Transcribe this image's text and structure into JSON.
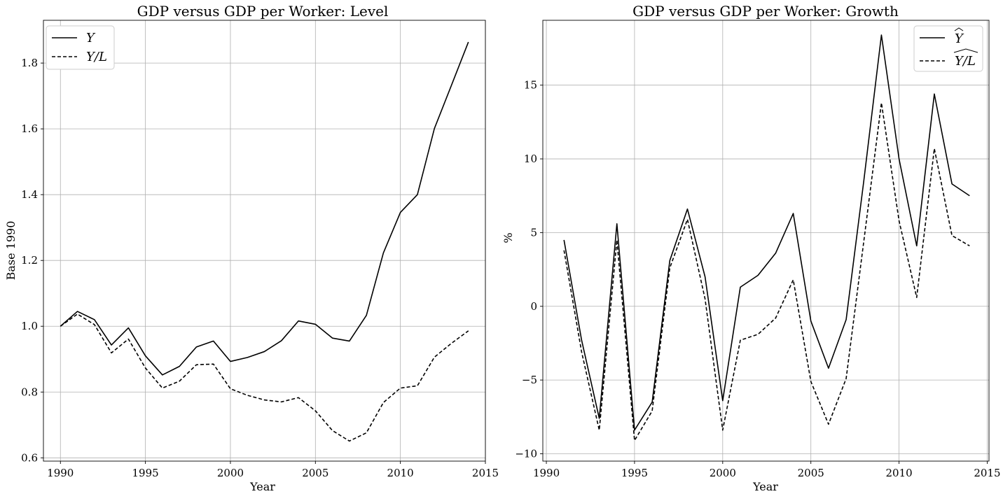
{
  "chart_data": [
    {
      "type": "line",
      "title": "GDP versus GDP per Worker: Level",
      "xlabel": "Year",
      "ylabel": "Base 1990",
      "xlim": [
        1989,
        2015
      ],
      "ylim": [
        0.59,
        1.93
      ],
      "xticks": [
        1990,
        1995,
        2000,
        2005,
        2010,
        2015
      ],
      "yticks": [
        0.6,
        0.8,
        1.0,
        1.2,
        1.4,
        1.6,
        1.8
      ],
      "ytick_labels": [
        "0.6",
        "0.8",
        "1.0",
        "1.2",
        "1.4",
        "1.6",
        "1.8"
      ],
      "grid": true,
      "legend_position": "top-left",
      "x": [
        1990,
        1991,
        1992,
        1993,
        1994,
        1995,
        1996,
        1997,
        1998,
        1999,
        2000,
        2001,
        2002,
        2003,
        2004,
        2005,
        2006,
        2007,
        2008,
        2009,
        2010,
        2011,
        2012,
        2013,
        2014
      ],
      "series": [
        {
          "name": "Y",
          "style": "solid",
          "values": [
            1.0,
            1.045,
            1.02,
            0.943,
            0.995,
            0.91,
            0.852,
            0.878,
            0.937,
            0.955,
            0.893,
            0.905,
            0.923,
            0.956,
            1.016,
            1.006,
            0.964,
            0.955,
            1.033,
            1.223,
            1.346,
            1.4,
            1.601,
            1.732,
            1.864
          ]
        },
        {
          "name": "Y/L",
          "style": "dashed",
          "values": [
            1.0,
            1.037,
            1.005,
            0.919,
            0.961,
            0.873,
            0.812,
            0.833,
            0.883,
            0.885,
            0.81,
            0.79,
            0.776,
            0.77,
            0.783,
            0.743,
            0.683,
            0.651,
            0.676,
            0.768,
            0.812,
            0.819,
            0.906,
            0.948,
            0.986
          ]
        }
      ]
    },
    {
      "type": "line",
      "title": "GDP versus GDP per Worker: Growth",
      "xlabel": "Year",
      "ylabel": "%",
      "xlim": [
        1989.8,
        2015.1
      ],
      "ylim": [
        -10.5,
        19.4
      ],
      "xticks": [
        1990,
        1995,
        2000,
        2005,
        2010,
        2015
      ],
      "yticks": [
        -10,
        -5,
        0,
        5,
        10,
        15
      ],
      "ytick_labels": [
        "−10",
        "−5",
        "0",
        "5",
        "10",
        "15"
      ],
      "grid": true,
      "legend_position": "top-right",
      "x": [
        1991,
        1992,
        1993,
        1994,
        1995,
        1996,
        1997,
        1998,
        1999,
        2000,
        2001,
        2002,
        2003,
        2004,
        2005,
        2006,
        2007,
        2008,
        2009,
        2010,
        2011,
        2012,
        2013,
        2014
      ],
      "series": [
        {
          "name": "Ŷ",
          "style": "solid",
          "values": [
            4.5,
            -2.3,
            -7.6,
            5.6,
            -8.4,
            -6.5,
            3.1,
            6.6,
            2.0,
            -6.4,
            1.3,
            2.1,
            3.6,
            6.3,
            -1.0,
            -4.2,
            -0.9,
            8.5,
            18.4,
            10.0,
            4.1,
            14.4,
            8.3,
            7.5
          ]
        },
        {
          "name": "Y/L (hat)",
          "style": "dashed",
          "values": [
            3.8,
            -3.1,
            -8.4,
            4.5,
            -9.1,
            -7.1,
            2.6,
            5.9,
            0.5,
            -8.4,
            -2.3,
            -1.9,
            -0.8,
            1.8,
            -5.1,
            -8.0,
            -4.9,
            4.4,
            13.8,
            5.8,
            0.6,
            10.7,
            4.8,
            4.1
          ]
        }
      ]
    }
  ]
}
